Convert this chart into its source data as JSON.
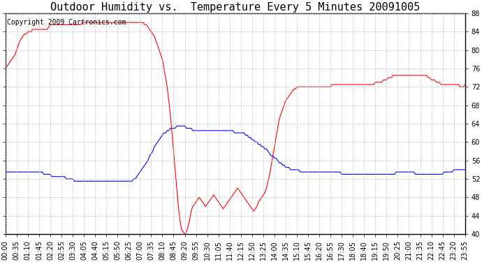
{
  "title": "Outdoor Humidity vs.  Temperature Every 5 Minutes 20091005",
  "copyright": "Copyright 2009 Cartronics.com",
  "y_min": 40.0,
  "y_max": 88.0,
  "y_step": 4.0,
  "line_color_red": "#ff0000",
  "line_color_blue": "#0000ff",
  "background_color": "#ffffff",
  "grid_color": "#bbbbbb",
  "title_fontsize": 11,
  "copyright_fontsize": 7,
  "tick_fontsize": 7,
  "red_data": [
    76.0,
    76.5,
    77.0,
    77.5,
    78.0,
    78.5,
    79.0,
    80.0,
    81.0,
    82.0,
    82.5,
    83.0,
    83.5,
    83.5,
    84.0,
    84.0,
    84.0,
    84.5,
    84.5,
    84.5,
    84.5,
    84.5,
    84.5,
    84.5,
    84.5,
    84.5,
    84.5,
    85.0,
    85.5,
    85.5,
    85.5,
    85.5,
    85.5,
    85.5,
    85.5,
    85.5,
    85.5,
    85.5,
    85.5,
    85.5,
    85.5,
    85.5,
    85.5,
    85.5,
    85.5,
    85.5,
    85.5,
    85.5,
    86.0,
    86.0,
    86.0,
    86.0,
    86.0,
    86.0,
    86.0,
    86.0,
    86.0,
    86.0,
    86.0,
    86.0,
    86.0,
    86.0,
    86.0,
    86.0,
    86.0,
    86.0,
    86.0,
    86.0,
    86.0,
    86.0,
    86.0,
    86.0,
    86.0,
    86.0,
    86.0,
    86.0,
    86.0,
    86.0,
    86.0,
    86.0,
    86.0,
    86.0,
    86.0,
    86.0,
    86.0,
    86.0,
    86.0,
    85.5,
    85.5,
    85.0,
    84.5,
    84.0,
    83.5,
    83.0,
    82.0,
    81.0,
    80.0,
    79.0,
    78.0,
    76.0,
    74.0,
    72.0,
    69.0,
    66.0,
    62.0,
    58.0,
    54.0,
    50.0,
    46.0,
    43.0,
    41.0,
    40.5,
    40.0,
    40.5,
    41.5,
    43.0,
    45.0,
    46.0,
    46.5,
    47.0,
    47.5,
    48.0,
    47.5,
    47.0,
    46.5,
    46.0,
    46.5,
    47.0,
    47.5,
    48.0,
    48.5,
    48.0,
    47.5,
    47.0,
    46.5,
    46.0,
    45.5,
    46.0,
    46.5,
    47.0,
    47.5,
    48.0,
    48.5,
    49.0,
    49.5,
    50.0,
    49.5,
    49.0,
    48.5,
    48.0,
    47.5,
    47.0,
    46.5,
    46.0,
    45.5,
    45.0,
    45.5,
    46.0,
    47.0,
    47.5,
    48.0,
    48.5,
    49.0,
    50.0,
    51.5,
    53.0,
    55.0,
    57.0,
    59.0,
    61.0,
    63.0,
    65.0,
    66.0,
    67.0,
    68.0,
    69.0,
    69.5,
    70.0,
    70.5,
    71.0,
    71.5,
    71.5,
    72.0,
    72.0,
    72.0,
    72.0,
    72.0,
    72.0,
    72.0,
    72.0,
    72.0,
    72.0,
    72.0,
    72.0,
    72.0,
    72.0,
    72.0,
    72.0,
    72.0,
    72.0,
    72.0,
    72.0,
    72.0,
    72.0,
    72.5,
    72.5,
    72.5,
    72.5,
    72.5,
    72.5,
    72.5,
    72.5,
    72.5,
    72.5,
    72.5,
    72.5,
    72.5,
    72.5,
    72.5,
    72.5,
    72.5,
    72.5,
    72.5,
    72.5,
    72.5,
    72.5,
    72.5,
    72.5,
    72.5,
    72.5,
    72.5,
    73.0,
    73.0,
    73.0,
    73.0,
    73.0,
    73.5,
    73.5,
    73.5,
    74.0,
    74.0,
    74.0,
    74.5,
    74.5,
    74.5,
    74.5,
    74.5,
    74.5,
    74.5,
    74.5,
    74.5,
    74.5,
    74.5,
    74.5,
    74.5,
    74.5,
    74.5,
    74.5,
    74.5,
    74.5,
    74.5,
    74.5,
    74.5,
    74.5,
    74.0,
    74.0,
    73.5,
    73.5,
    73.5,
    73.0,
    73.0,
    73.0,
    72.5,
    72.5,
    72.5,
    72.5,
    72.5,
    72.5,
    72.5,
    72.5,
    72.5,
    72.5,
    72.5,
    72.5,
    72.0,
    72.0,
    72.0,
    72.5,
    72.5,
    72.5
  ],
  "blue_data": [
    53.5,
    53.5,
    53.5,
    53.5,
    53.5,
    53.5,
    53.5,
    53.5,
    53.5,
    53.5,
    53.5,
    53.5,
    53.5,
    53.5,
    53.5,
    53.5,
    53.5,
    53.5,
    53.5,
    53.5,
    53.5,
    53.5,
    53.5,
    53.5,
    53.0,
    53.0,
    53.0,
    53.0,
    53.0,
    52.5,
    52.5,
    52.5,
    52.5,
    52.5,
    52.5,
    52.5,
    52.5,
    52.5,
    52.0,
    52.0,
    52.0,
    52.0,
    52.0,
    51.5,
    51.5,
    51.5,
    51.5,
    51.5,
    51.5,
    51.5,
    51.5,
    51.5,
    51.5,
    51.5,
    51.5,
    51.5,
    51.5,
    51.5,
    51.5,
    51.5,
    51.5,
    51.5,
    51.5,
    51.5,
    51.5,
    51.5,
    51.5,
    51.5,
    51.5,
    51.5,
    51.5,
    51.5,
    51.5,
    51.5,
    51.5,
    51.5,
    51.5,
    51.5,
    51.5,
    51.5,
    52.0,
    52.0,
    52.5,
    53.0,
    53.5,
    54.0,
    54.5,
    55.0,
    55.5,
    56.0,
    57.0,
    57.5,
    58.0,
    59.0,
    59.5,
    60.0,
    60.5,
    61.0,
    61.5,
    62.0,
    62.0,
    62.5,
    62.5,
    63.0,
    63.0,
    63.0,
    63.0,
    63.5,
    63.5,
    63.5,
    63.5,
    63.5,
    63.5,
    63.0,
    63.0,
    63.0,
    63.0,
    62.5,
    62.5,
    62.5,
    62.5,
    62.5,
    62.5,
    62.5,
    62.5,
    62.5,
    62.5,
    62.5,
    62.5,
    62.5,
    62.5,
    62.5,
    62.5,
    62.5,
    62.5,
    62.5,
    62.5,
    62.5,
    62.5,
    62.5,
    62.5,
    62.5,
    62.5,
    62.0,
    62.0,
    62.0,
    62.0,
    62.0,
    62.0,
    62.0,
    61.5,
    61.5,
    61.0,
    61.0,
    60.5,
    60.5,
    60.0,
    60.0,
    59.5,
    59.5,
    59.0,
    59.0,
    58.5,
    58.5,
    58.0,
    57.5,
    57.0,
    57.0,
    56.5,
    56.5,
    56.0,
    55.5,
    55.5,
    55.0,
    55.0,
    54.5,
    54.5,
    54.5,
    54.0,
    54.0,
    54.0,
    54.0,
    54.0,
    54.0,
    53.5,
    53.5,
    53.5,
    53.5,
    53.5,
    53.5,
    53.5,
    53.5,
    53.5,
    53.5,
    53.5,
    53.5,
    53.5,
    53.5,
    53.5,
    53.5,
    53.5,
    53.5,
    53.5,
    53.5,
    53.5,
    53.5,
    53.5,
    53.5,
    53.5,
    53.5,
    53.0,
    53.0,
    53.0,
    53.0,
    53.0,
    53.0,
    53.0,
    53.0,
    53.0,
    53.0,
    53.0,
    53.0,
    53.0,
    53.0,
    53.0,
    53.0,
    53.0,
    53.0,
    53.0,
    53.0,
    53.0,
    53.0,
    53.0,
    53.0,
    53.0,
    53.0,
    53.0,
    53.0,
    53.0,
    53.0,
    53.0,
    53.0,
    53.0,
    53.0,
    53.5,
    53.5,
    53.5,
    53.5,
    53.5,
    53.5,
    53.5,
    53.5,
    53.5,
    53.5,
    53.5,
    53.5,
    53.0,
    53.0,
    53.0,
    53.0,
    53.0,
    53.0,
    53.0,
    53.0,
    53.0,
    53.0,
    53.0,
    53.0,
    53.0,
    53.0,
    53.0,
    53.0,
    53.0,
    53.0,
    53.5,
    53.5,
    53.5,
    53.5,
    53.5,
    53.5,
    54.0,
    54.0,
    54.0,
    54.0,
    54.0,
    54.0,
    54.0,
    54.0,
    54.0,
    54.0
  ],
  "x_tick_interval_min": 35,
  "total_minutes": 1435
}
